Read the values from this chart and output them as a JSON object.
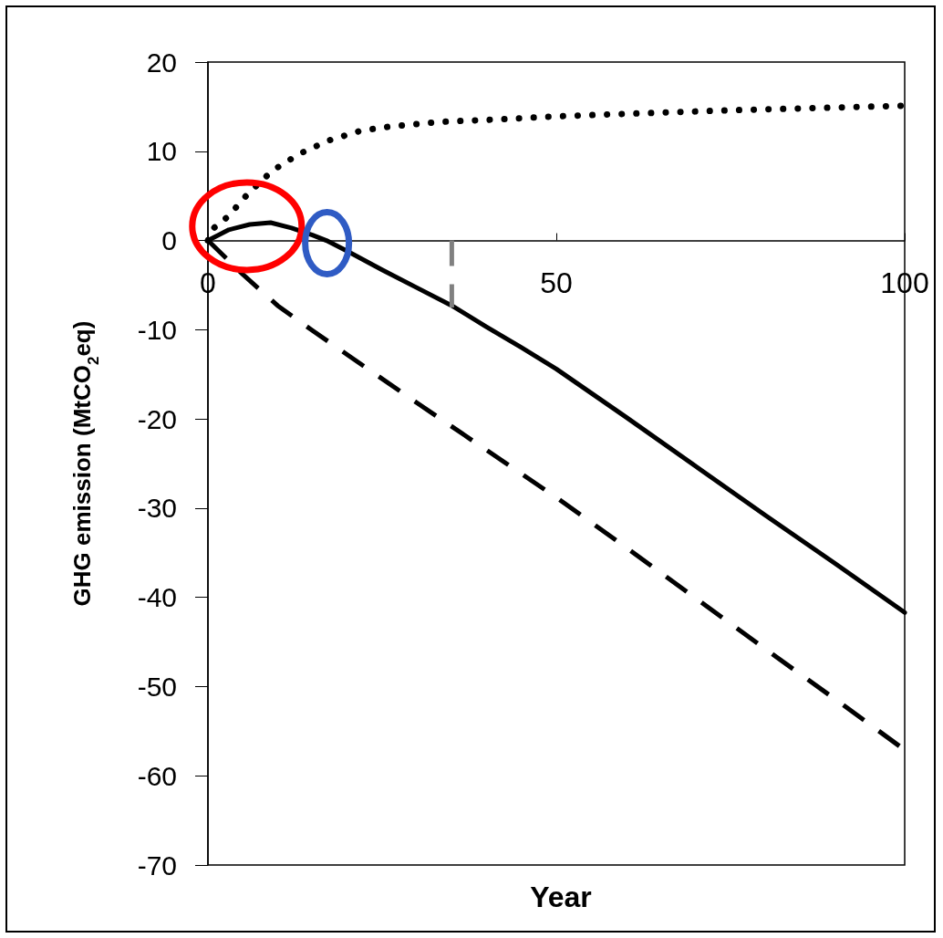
{
  "chart_data": {
    "type": "line",
    "xlabel": "Year",
    "ylabel": "GHG emission (MtCO$_{2}$eq)",
    "xlim": [
      0,
      100
    ],
    "xticks": [
      0,
      50,
      100
    ],
    "ylim": [
      -70,
      20
    ],
    "yticks": [
      -70,
      -60,
      -50,
      -40,
      -30,
      -20,
      -10,
      0,
      10,
      20
    ],
    "grid": false,
    "series": [
      {
        "color": "#000000",
        "line_style": "dotted",
        "x": [
          0,
          0.7,
          2.9,
          5.7,
          9.2,
          13.1,
          17.3,
          21.9,
          26.4,
          33.4,
          42.5,
          49.6,
          60,
          75,
          90,
          100
        ],
        "values": [
          0,
          1.3,
          2.7,
          5.2,
          7.8,
          9.7,
          11.2,
          12.3,
          12.8,
          13.3,
          13.6,
          13.9,
          14.2,
          14.6,
          14.9,
          15.1
        ]
      },
      {
        "color": "#000000",
        "line_style": "solid",
        "x": [
          0,
          3,
          6,
          9,
          12,
          15,
          17,
          20,
          25,
          30,
          35,
          40,
          45,
          50,
          60,
          70,
          80,
          90,
          100
        ],
        "values": [
          0,
          1.2,
          1.8,
          2.0,
          1.4,
          0.6,
          0,
          -1.2,
          -3.3,
          -5.3,
          -7.3,
          -9.7,
          -12,
          -14.4,
          -19.8,
          -25.3,
          -30.8,
          -36.2,
          -41.7
        ]
      },
      {
        "color": "#000000",
        "line_style": "dashed",
        "x": [
          0,
          5,
          10,
          15,
          20,
          30,
          40,
          50,
          60,
          70,
          80,
          90,
          100
        ],
        "values": [
          0,
          -3.8,
          -7.3,
          -10.1,
          -12.8,
          -18.2,
          -23.5,
          -28.8,
          -34.4,
          -40.1,
          -45.8,
          -51.4,
          -57.1
        ]
      },
      {
        "color": "#808080",
        "line_style": "dashed",
        "x": [
          35,
          35
        ],
        "values": [
          0,
          -7.5
        ]
      }
    ]
  }
}
